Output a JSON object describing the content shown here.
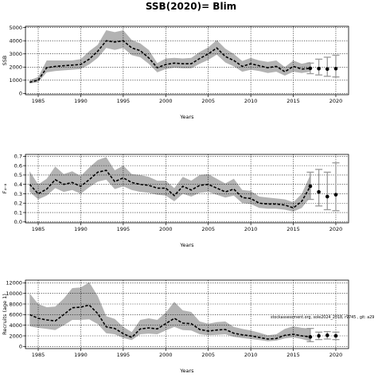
{
  "title": "SSB(2020)= Blim",
  "chart_data": [
    {
      "type": "line",
      "ylabel": "SSB",
      "xlabel": "Years",
      "xlim": [
        1983.5,
        2021.5
      ],
      "ylim": [
        -100,
        5100
      ],
      "xticks": [
        1985,
        1990,
        1995,
        2000,
        2005,
        2010,
        2015,
        2020
      ],
      "yticks": [
        0,
        1000,
        2000,
        3000,
        4000,
        5000
      ],
      "grid": true,
      "hist_years": [
        1984,
        1985,
        1986,
        1987,
        1988,
        1989,
        1990,
        1991,
        1992,
        1993,
        1994,
        1995,
        1996,
        1997,
        1998,
        1999,
        2000,
        2001,
        2002,
        2003,
        2004,
        2005,
        2006,
        2007,
        2008,
        2009,
        2010,
        2011,
        2012,
        2013,
        2014,
        2015,
        2016,
        2017
      ],
      "hist_values": [
        850,
        1000,
        1950,
        2050,
        2100,
        2150,
        2200,
        2600,
        3200,
        4000,
        3900,
        4000,
        3450,
        3250,
        2700,
        1950,
        2200,
        2300,
        2250,
        2250,
        2650,
        3000,
        3450,
        2800,
        2500,
        2050,
        2250,
        2100,
        1950,
        2050,
        1650,
        2050,
        1850,
        1900
      ],
      "hist_lower": [
        750,
        850,
        1600,
        1700,
        1750,
        1800,
        1850,
        2200,
        2700,
        3450,
        3300,
        3450,
        2900,
        2750,
        2250,
        1600,
        1850,
        1950,
        1900,
        1900,
        2250,
        2550,
        2950,
        2350,
        2050,
        1650,
        1800,
        1700,
        1550,
        1650,
        1350,
        1650,
        1550,
        1650
      ],
      "hist_upper": [
        1000,
        1250,
        2500,
        2500,
        2500,
        2500,
        2600,
        3200,
        3700,
        4800,
        4650,
        4800,
        4050,
        3800,
        3300,
        2300,
        2650,
        2700,
        2650,
        2700,
        3150,
        3500,
        4050,
        3400,
        3000,
        2450,
        2700,
        2500,
        2400,
        2500,
        2000,
        2500,
        2250,
        2400
      ],
      "proj_years": [
        2017,
        2018,
        2019,
        2020
      ],
      "proj_values": [
        1900,
        1880,
        1850,
        1880
      ],
      "proj_lower": [
        1500,
        1400,
        1300,
        1250
      ],
      "proj_upper": [
        2300,
        2600,
        2750,
        2900
      ]
    },
    {
      "type": "line",
      "ylabel": "F₄₋₈",
      "xlabel": "Years",
      "xlim": [
        1983.5,
        2021.5
      ],
      "ylim": [
        -0.01,
        0.72
      ],
      "xticks": [
        1985,
        1990,
        1995,
        2000,
        2005,
        2010,
        2015,
        2020
      ],
      "yticks": [
        0.0,
        0.1,
        0.2,
        0.3,
        0.4,
        0.5,
        0.6,
        0.7
      ],
      "yticklabels": [
        "0.0",
        "0.1",
        "0.2",
        "0.3",
        "0.4",
        "0.5",
        "0.6",
        "0.7"
      ],
      "grid": true,
      "hist_years": [
        1984,
        1985,
        1986,
        1987,
        1988,
        1989,
        1990,
        1991,
        1992,
        1993,
        1994,
        1995,
        1996,
        1997,
        1998,
        1999,
        2000,
        2001,
        2002,
        2003,
        2004,
        2005,
        2006,
        2007,
        2008,
        2009,
        2010,
        2011,
        2012,
        2013,
        2014,
        2015,
        2016,
        2017
      ],
      "hist_values": [
        0.4,
        0.3,
        0.35,
        0.45,
        0.4,
        0.42,
        0.38,
        0.45,
        0.53,
        0.55,
        0.43,
        0.47,
        0.42,
        0.4,
        0.39,
        0.36,
        0.36,
        0.28,
        0.38,
        0.34,
        0.39,
        0.4,
        0.36,
        0.32,
        0.35,
        0.26,
        0.25,
        0.2,
        0.19,
        0.19,
        0.18,
        0.15,
        0.22,
        0.38
      ],
      "hist_lower": [
        0.32,
        0.24,
        0.28,
        0.36,
        0.32,
        0.34,
        0.3,
        0.37,
        0.43,
        0.45,
        0.35,
        0.38,
        0.34,
        0.32,
        0.31,
        0.29,
        0.28,
        0.22,
        0.3,
        0.27,
        0.31,
        0.32,
        0.29,
        0.26,
        0.28,
        0.2,
        0.19,
        0.15,
        0.14,
        0.14,
        0.13,
        0.11,
        0.15,
        0.26
      ],
      "hist_upper": [
        0.54,
        0.4,
        0.46,
        0.59,
        0.51,
        0.54,
        0.49,
        0.58,
        0.66,
        0.69,
        0.55,
        0.6,
        0.51,
        0.5,
        0.48,
        0.44,
        0.44,
        0.36,
        0.48,
        0.44,
        0.5,
        0.51,
        0.46,
        0.41,
        0.46,
        0.34,
        0.33,
        0.27,
        0.26,
        0.25,
        0.24,
        0.21,
        0.3,
        0.5
      ],
      "proj_years": [
        2017,
        2018,
        2019,
        2020
      ],
      "proj_values": [
        0.38,
        0.32,
        0.27,
        0.29
      ],
      "proj_lower": [
        0.24,
        0.17,
        0.13,
        0.12
      ],
      "proj_upper": [
        0.53,
        0.56,
        0.53,
        0.63
      ]
    },
    {
      "type": "line",
      "ylabel": "Recruits (age 1)",
      "xlabel": "Years",
      "xlim": [
        1983.5,
        2021.5
      ],
      "ylim": [
        -400,
        12500
      ],
      "xticks": [
        1985,
        1990,
        1995,
        2000,
        2005,
        2010,
        2015,
        2020
      ],
      "yticks": [
        0,
        2000,
        4000,
        6000,
        8000,
        10000,
        12000
      ],
      "grid": true,
      "annotation": "stockassessment.org, sole2024_2018, r9745 , git: a29",
      "hist_years": [
        1984,
        1985,
        1986,
        1987,
        1988,
        1989,
        1990,
        1991,
        1992,
        1993,
        1994,
        1995,
        1996,
        1997,
        1998,
        1999,
        2000,
        2001,
        2002,
        2003,
        2004,
        2005,
        2006,
        2007,
        2008,
        2009,
        2010,
        2011,
        2012,
        2013,
        2014,
        2015,
        2016,
        2017
      ],
      "hist_values": [
        6000,
        5300,
        5000,
        4800,
        6000,
        7300,
        7400,
        7800,
        6200,
        3700,
        3400,
        2400,
        1700,
        3300,
        3500,
        3300,
        4300,
        5300,
        4400,
        4300,
        3200,
        2900,
        3100,
        3200,
        2500,
        2200,
        2000,
        1700,
        1400,
        1500,
        2100,
        2300,
        2000,
        1800
      ],
      "hist_lower": [
        3800,
        3500,
        3300,
        3100,
        4000,
        5000,
        5000,
        5100,
        4200,
        2500,
        2300,
        1600,
        1200,
        2300,
        2400,
        2300,
        3000,
        3700,
        3100,
        3000,
        2300,
        2100,
        2200,
        2300,
        1800,
        1600,
        1400,
        1200,
        1000,
        1100,
        1500,
        1700,
        1400,
        1000
      ],
      "hist_upper": [
        10000,
        8000,
        7400,
        7500,
        9000,
        11000,
        11100,
        12100,
        9500,
        5700,
        5200,
        3700,
        2700,
        5000,
        5300,
        5000,
        6400,
        8400,
        6800,
        6500,
        4700,
        4300,
        4600,
        4700,
        3700,
        3300,
        3000,
        2600,
        2100,
        2300,
        3300,
        3800,
        3500,
        3400
      ],
      "proj_years": [
        2017,
        2018,
        2019,
        2020
      ],
      "proj_values": [
        1800,
        2000,
        2100,
        2000
      ],
      "proj_lower": [
        900,
        1300,
        1400,
        1300
      ],
      "proj_upper": [
        3400,
        2700,
        2800,
        2700
      ]
    }
  ]
}
